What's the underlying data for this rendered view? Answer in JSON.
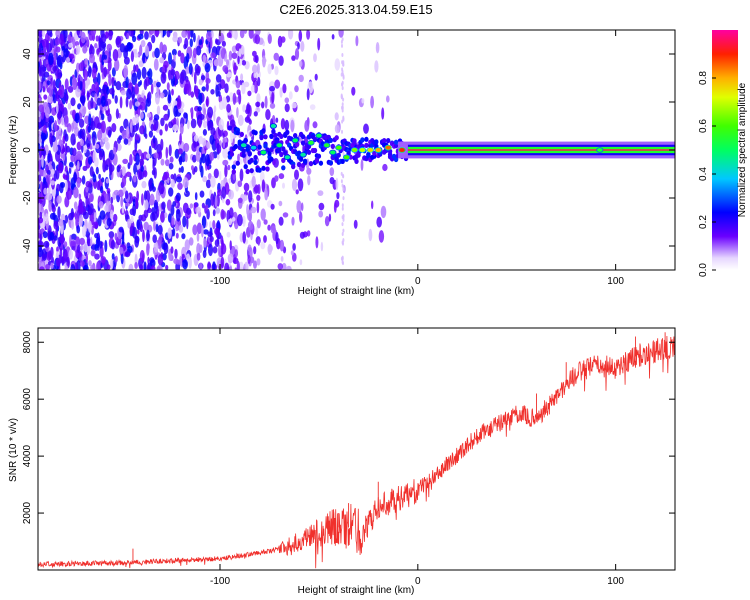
{
  "title": "C2E6.2025.313.04.59.E15",
  "chart_data": [
    {
      "type": "heatmap",
      "xlabel": "Height of straight line (km)",
      "ylabel": "Frequency (Hz)",
      "xlim": [
        -192,
        130
      ],
      "ylim": [
        -50,
        50
      ],
      "x_ticks": [
        -100,
        0,
        100
      ],
      "y_ticks": [
        -40,
        -20,
        0,
        20,
        40
      ],
      "grid": false,
      "signal_line": {
        "frequency_hz": 0,
        "x_start": -5,
        "x_end": 130,
        "amplitude": 0.95
      },
      "noise_region": {
        "x_start": -192,
        "x_end": -55,
        "frequency_range": [
          -50,
          50
        ],
        "amplitude_range": [
          0.05,
          0.25
        ]
      },
      "transition_blobs": [
        {
          "x": -88,
          "y": 2,
          "v": 0.45
        },
        {
          "x": -83,
          "y": 1,
          "v": 0.4
        },
        {
          "x": -78,
          "y": -1,
          "v": 0.5
        },
        {
          "x": -73,
          "y": 10,
          "v": 0.45
        },
        {
          "x": -70,
          "y": 2,
          "v": 0.5
        },
        {
          "x": -66,
          "y": -3,
          "v": 0.45
        },
        {
          "x": -62,
          "y": 4,
          "v": 0.5
        },
        {
          "x": -58,
          "y": -2,
          "v": 0.45
        },
        {
          "x": -54,
          "y": 3,
          "v": 0.55
        },
        {
          "x": -50,
          "y": 6,
          "v": 0.5
        },
        {
          "x": -46,
          "y": 2,
          "v": 0.55
        },
        {
          "x": -43,
          "y": -1,
          "v": 0.5
        },
        {
          "x": -40,
          "y": 1,
          "v": 0.6
        },
        {
          "x": -36,
          "y": -3,
          "v": 0.6
        },
        {
          "x": -32,
          "y": 0,
          "v": 0.65
        },
        {
          "x": -28,
          "y": 0,
          "v": 0.7
        },
        {
          "x": -24,
          "y": 0,
          "v": 0.75
        },
        {
          "x": -20,
          "y": 0,
          "v": 0.8
        },
        {
          "x": -15,
          "y": 1,
          "v": 0.85
        },
        {
          "x": -8,
          "y": 0,
          "v": 0.9
        },
        {
          "x": 92,
          "y": 0,
          "v": 0.55
        }
      ]
    },
    {
      "type": "line",
      "xlabel": "Height of straight line (km)",
      "ylabel": "SNR (10 * v/v)",
      "xlim": [
        -192,
        130
      ],
      "ylim": [
        0,
        8500
      ],
      "x_ticks": [
        -100,
        0,
        100
      ],
      "y_ticks": [
        2000,
        4000,
        6000,
        8000
      ],
      "color": "#f0302c",
      "trend": [
        {
          "x": -192,
          "y": 200
        },
        {
          "x": -150,
          "y": 250
        },
        {
          "x": -100,
          "y": 400
        },
        {
          "x": -75,
          "y": 650
        },
        {
          "x": -60,
          "y": 1000
        },
        {
          "x": -45,
          "y": 1500
        },
        {
          "x": -33,
          "y": 1500
        },
        {
          "x": -28,
          "y": 1300
        },
        {
          "x": -20,
          "y": 2200
        },
        {
          "x": -10,
          "y": 2500
        },
        {
          "x": 0,
          "y": 2800
        },
        {
          "x": 10,
          "y": 3400
        },
        {
          "x": 30,
          "y": 4700
        },
        {
          "x": 50,
          "y": 5500
        },
        {
          "x": 60,
          "y": 5300
        },
        {
          "x": 70,
          "y": 6100
        },
        {
          "x": 80,
          "y": 6900
        },
        {
          "x": 90,
          "y": 7200
        },
        {
          "x": 100,
          "y": 7100
        },
        {
          "x": 110,
          "y": 7500
        },
        {
          "x": 130,
          "y": 7900
        }
      ],
      "spikes": [
        {
          "x": -144,
          "y": 750
        },
        {
          "x": -40,
          "y": 2000
        },
        {
          "x": -35,
          "y": 2350
        },
        {
          "x": -20,
          "y": 3100
        },
        {
          "x": 60,
          "y": 6200
        },
        {
          "x": 75,
          "y": 7300
        },
        {
          "x": 110,
          "y": 8200
        },
        {
          "x": 125,
          "y": 8350
        }
      ]
    }
  ],
  "colorbar": {
    "label": "Normalized spectral amplitude",
    "ticks": [
      "0.0",
      "0.2",
      "0.4",
      "0.6",
      "0.8"
    ],
    "tick_values": [
      0,
      0.2,
      0.4,
      0.6,
      0.8
    ],
    "range": [
      0,
      1
    ]
  }
}
